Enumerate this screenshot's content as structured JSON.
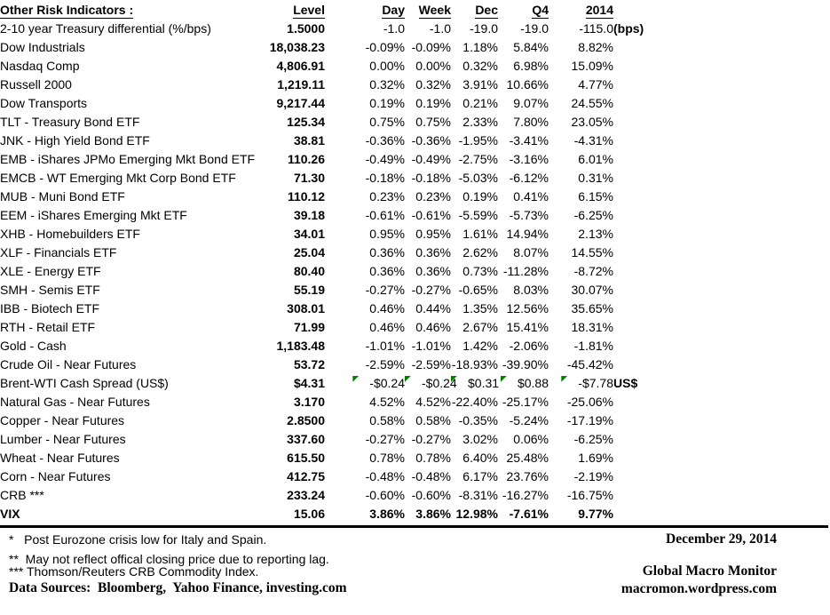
{
  "table": {
    "title": "Other Risk Indicators :",
    "columns": [
      "Level",
      "Day",
      "Week",
      "Dec",
      "Q4",
      "2014"
    ],
    "rows": [
      {
        "name": "2-10 year Treasury differential (%/bps)",
        "level": "1.5000",
        "day": "-1.0",
        "week": "-1.0",
        "dec": "-19.0",
        "q4": "-19.0",
        "y2014": "-115.0",
        "note": "(bps)"
      },
      {
        "name": "Dow Industrials",
        "level": "18,038.23",
        "day": "-0.09%",
        "week": "-0.09%",
        "dec": "1.18%",
        "q4": "5.84%",
        "y2014": "8.82%"
      },
      {
        "name": "Nasdaq Comp",
        "level": "4,806.91",
        "day": "0.00%",
        "week": "0.00%",
        "dec": "0.32%",
        "q4": "6.98%",
        "y2014": "15.09%"
      },
      {
        "name": "Russell 2000",
        "level": "1,219.11",
        "day": "0.32%",
        "week": "0.32%",
        "dec": "3.91%",
        "q4": "10.66%",
        "y2014": "4.77%"
      },
      {
        "name": "Dow Transports",
        "level": "9,217.44",
        "day": "0.19%",
        "week": "0.19%",
        "dec": "0.21%",
        "q4": "9.07%",
        "y2014": "24.55%"
      },
      {
        "name": "TLT - Treasury Bond ETF",
        "level": "125.34",
        "day": "0.75%",
        "week": "0.75%",
        "dec": "2.33%",
        "q4": "7.80%",
        "y2014": "23.05%"
      },
      {
        "name": "JNK - High Yield Bond ETF",
        "level": "38.81",
        "day": "-0.36%",
        "week": "-0.36%",
        "dec": "-1.95%",
        "q4": "-3.41%",
        "y2014": "-4.31%"
      },
      {
        "name": "EMB - iShares JPMo Emerging Mkt Bond ETF",
        "level": "110.26",
        "day": "-0.49%",
        "week": "-0.49%",
        "dec": "-2.75%",
        "q4": "-3.16%",
        "y2014": "6.01%"
      },
      {
        "name": "EMCB - WT Emerging Mkt Corp Bond ETF",
        "level": "71.30",
        "day": "-0.18%",
        "week": "-0.18%",
        "dec": "-5.03%",
        "q4": "-6.12%",
        "y2014": "0.31%"
      },
      {
        "name": "MUB - Muni Bond ETF",
        "level": "110.12",
        "day": "0.23%",
        "week": "0.23%",
        "dec": "0.19%",
        "q4": "0.41%",
        "y2014": "6.15%"
      },
      {
        "name": "EEM - iShares Emerging Mkt ETF",
        "level": "39.18",
        "day": "-0.61%",
        "week": "-0.61%",
        "dec": "-5.59%",
        "q4": "-5.73%",
        "y2014": "-6.25%"
      },
      {
        "name": "XHB - Homebuilders ETF",
        "level": "34.01",
        "day": "0.95%",
        "week": "0.95%",
        "dec": "1.61%",
        "q4": "14.94%",
        "y2014": "2.13%"
      },
      {
        "name": "XLF - Financials ETF",
        "level": "25.04",
        "day": "0.36%",
        "week": "0.36%",
        "dec": "2.62%",
        "q4": "8.07%",
        "y2014": "14.55%"
      },
      {
        "name": "XLE - Energy ETF",
        "level": "80.40",
        "day": "0.36%",
        "week": "0.36%",
        "dec": "0.73%",
        "q4": "-11.28%",
        "y2014": "-8.72%"
      },
      {
        "name": "SMH - Semis ETF",
        "level": "55.19",
        "day": "-0.27%",
        "week": "-0.27%",
        "dec": "-0.65%",
        "q4": "8.03%",
        "y2014": "30.07%"
      },
      {
        "name": "IBB - Biotech ETF",
        "level": "308.01",
        "day": "0.46%",
        "week": "0.44%",
        "dec": "1.35%",
        "q4": "12.56%",
        "y2014": "35.65%"
      },
      {
        "name": "RTH - Retail ETF",
        "level": "71.99",
        "day": "0.46%",
        "week": "0.46%",
        "dec": "2.67%",
        "q4": "15.41%",
        "y2014": "18.31%"
      },
      {
        "name": "Gold - Cash",
        "level": "1,183.48",
        "day": "-1.01%",
        "week": "-1.01%",
        "dec": "1.42%",
        "q4": "-2.06%",
        "y2014": "-1.81%"
      },
      {
        "name": "Crude Oil - Near Futures",
        "level": "53.72",
        "day": "-2.59%",
        "week": "-2.59%",
        "dec": "-18.93%",
        "q4": "-39.90%",
        "y2014": "-45.42%"
      },
      {
        "name": "Brent-WTI Cash Spread (US$)",
        "level": "$4.31",
        "day": "-$0.24",
        "week": "-$0.24",
        "dec": "$0.31",
        "q4": "$0.88",
        "y2014": "-$7.78",
        "note": "US$",
        "flags": true
      },
      {
        "name": "Natural Gas - Near Futures",
        "level": "3.170",
        "day": "4.52%",
        "week": "4.52%",
        "dec": "-22.40%",
        "q4": "-25.17%",
        "y2014": "-25.06%"
      },
      {
        "name": "Copper - Near Futures",
        "level": "2.8500",
        "day": "0.58%",
        "week": "0.58%",
        "dec": "-0.35%",
        "q4": "-5.24%",
        "y2014": "-17.19%"
      },
      {
        "name": "Lumber - Near Futures",
        "level": "337.60",
        "day": "-0.27%",
        "week": "-0.27%",
        "dec": "3.02%",
        "q4": "0.06%",
        "y2014": "-6.25%"
      },
      {
        "name": "Wheat - Near Futures",
        "level": "615.50",
        "day": "0.78%",
        "week": "0.78%",
        "dec": "6.40%",
        "q4": "25.48%",
        "y2014": "1.69%"
      },
      {
        "name": "Corn - Near Futures",
        "level": "412.75",
        "day": "-0.48%",
        "week": "-0.48%",
        "dec": "6.17%",
        "q4": "23.76%",
        "y2014": "-2.19%"
      },
      {
        "name": "CRB ***",
        "level": "233.24",
        "day": "-0.60%",
        "week": "-0.60%",
        "dec": "-8.31%",
        "q4": "-16.27%",
        "y2014": "-16.75%"
      },
      {
        "name": "VIX",
        "level": "15.06",
        "day": "3.86%",
        "week": "3.86%",
        "dec": "12.98%",
        "q4": "-7.61%",
        "y2014": "9.77%",
        "bold": true
      }
    ]
  },
  "footer": {
    "footnote1": "*   Post Eurozone crisis low for Italy and Spain.",
    "footnote2": "**  May not reflect offical closing price due to reporting lag.",
    "footnote3": "*** Thomson/Reuters CRB Commodity Index.",
    "data_sources": "Data Sources:  Bloomberg,  Yahoo Finance, investing.com",
    "date": "December 29, 2014",
    "brand": "Global Macro Monitor",
    "url": "macromon.wordpress.com"
  },
  "colors": {
    "text": "#000000",
    "background": "#ffffff",
    "comment_flag": "#008000"
  }
}
